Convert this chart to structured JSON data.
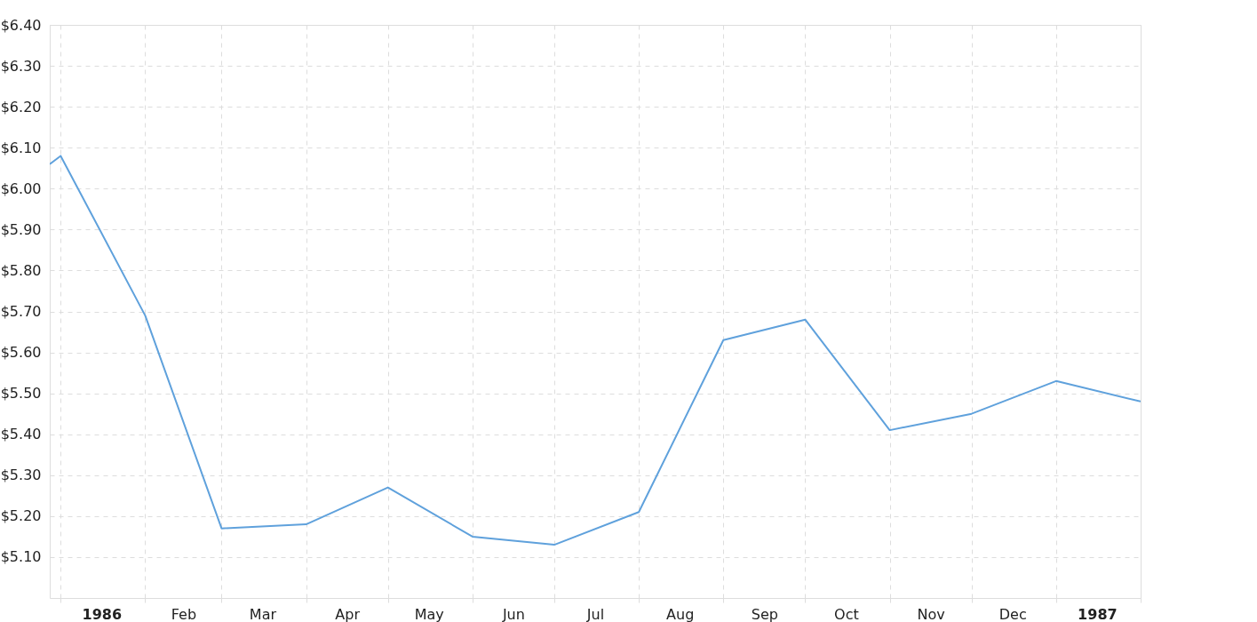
{
  "chart_data": {
    "type": "line",
    "x": [
      "1985-12-28",
      "1986-01-01",
      "1986-02-01",
      "1986-03-01",
      "1986-04-01",
      "1986-05-01",
      "1986-06-01",
      "1986-07-01",
      "1986-08-01",
      "1986-09-01",
      "1986-10-01",
      "1986-11-01",
      "1986-12-01",
      "1987-01-01",
      "1987-02-01"
    ],
    "series": [
      {
        "color": "#5fa1dc",
        "values": [
          6.06,
          6.08,
          5.69,
          5.17,
          5.18,
          5.27,
          5.15,
          5.13,
          5.21,
          5.63,
          5.68,
          5.41,
          5.45,
          5.53,
          5.48
        ]
      }
    ],
    "xlim": [
      "1985-12-28",
      "1987-02-01"
    ],
    "xticks": [
      {
        "value": "1986-01-01",
        "label": null
      },
      {
        "value": "1986-02-01",
        "label": null
      },
      {
        "value": "1986-03-01",
        "label": null
      },
      {
        "value": "1986-04-01",
        "label": null
      },
      {
        "value": "1986-05-01",
        "label": null
      },
      {
        "value": "1986-06-01",
        "label": null
      },
      {
        "value": "1986-07-01",
        "label": null
      },
      {
        "value": "1986-08-01",
        "label": null
      },
      {
        "value": "1986-09-01",
        "label": null
      },
      {
        "value": "1986-10-01",
        "label": null
      },
      {
        "value": "1986-11-01",
        "label": null
      },
      {
        "value": "1986-12-01",
        "label": null
      },
      {
        "value": "1987-01-01",
        "label": null
      },
      {
        "value": "1987-02-01",
        "label": null
      },
      {
        "value": "1986-01-16",
        "label": "1986"
      },
      {
        "value": "1986-02-15",
        "label": "Feb"
      },
      {
        "value": "1986-03-16",
        "label": "Mar"
      },
      {
        "value": "1986-04-16",
        "label": "Apr"
      },
      {
        "value": "1986-05-16",
        "label": "May"
      },
      {
        "value": "1986-06-16",
        "label": "Jun"
      },
      {
        "value": "1986-07-16",
        "label": "Jul"
      },
      {
        "value": "1986-08-16",
        "label": "Aug"
      },
      {
        "value": "1986-09-16",
        "label": "Sep"
      },
      {
        "value": "1986-10-16",
        "label": "Oct"
      },
      {
        "value": "1986-11-16",
        "label": "Nov"
      },
      {
        "value": "1986-12-16",
        "label": "Dec"
      },
      {
        "value": "1987-01-16",
        "label": "1987"
      }
    ],
    "ylim": [
      5.0,
      6.4
    ],
    "yticks": [
      {
        "value": 5.1,
        "label": "$5.10"
      },
      {
        "value": 5.2,
        "label": "$5.20"
      },
      {
        "value": 5.3,
        "label": "$5.30"
      },
      {
        "value": 5.4,
        "label": "$5.40"
      },
      {
        "value": 5.5,
        "label": "$5.50"
      },
      {
        "value": 5.6,
        "label": "$5.60"
      },
      {
        "value": 5.7,
        "label": "$5.70"
      },
      {
        "value": 5.8,
        "label": "$5.80"
      },
      {
        "value": 5.9,
        "label": "$5.90"
      },
      {
        "value": 6.0,
        "label": "$6.00"
      },
      {
        "value": 6.1,
        "label": "$6.10"
      },
      {
        "value": 6.2,
        "label": "$6.20"
      },
      {
        "value": 6.3,
        "label": "$6.30"
      },
      {
        "value": 6.4,
        "label": "$6.40"
      }
    ],
    "grid": true,
    "legend": false,
    "marker": "none",
    "line_style": "solid"
  }
}
